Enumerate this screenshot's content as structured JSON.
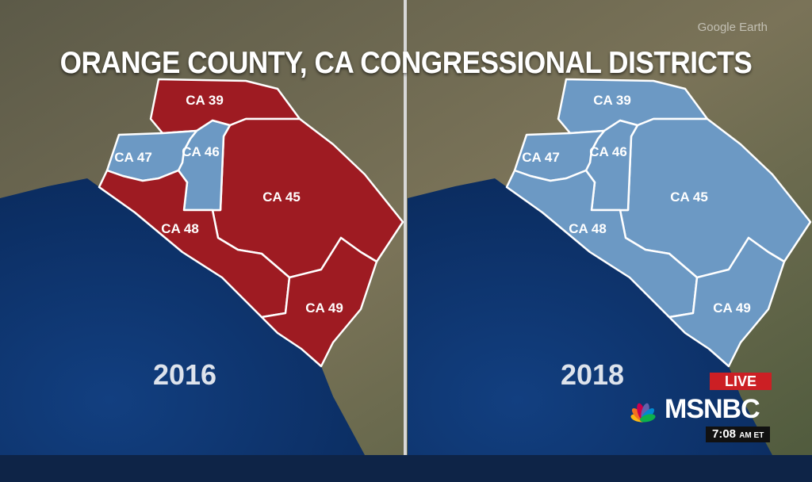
{
  "title": "ORANGE COUNTY, CA CONGRESSIONAL DISTRICTS",
  "watermark": "Google Earth",
  "panels": [
    {
      "year": "2016",
      "districts": [
        {
          "name": "CA 39",
          "party": "republican"
        },
        {
          "name": "CA 45",
          "party": "republican"
        },
        {
          "name": "CA 46",
          "party": "democratic"
        },
        {
          "name": "CA 47",
          "party": "democratic"
        },
        {
          "name": "CA 48",
          "party": "republican"
        },
        {
          "name": "CA 49",
          "party": "republican"
        }
      ]
    },
    {
      "year": "2018",
      "districts": [
        {
          "name": "CA 39",
          "party": "democratic"
        },
        {
          "name": "CA 45",
          "party": "democratic"
        },
        {
          "name": "CA 46",
          "party": "democratic"
        },
        {
          "name": "CA 47",
          "party": "democratic"
        },
        {
          "name": "CA 48",
          "party": "democratic"
        },
        {
          "name": "CA 49",
          "party": "democratic"
        }
      ]
    }
  ],
  "colors": {
    "republican": "#9e1b22",
    "democratic": "#6c99c4",
    "ocean": "#0f3873",
    "land": "#6a6550",
    "border": "#ffffff"
  },
  "network": {
    "live_label": "LIVE",
    "name": "MSNBC",
    "time": "7:08",
    "time_suffix": "AM ET"
  }
}
